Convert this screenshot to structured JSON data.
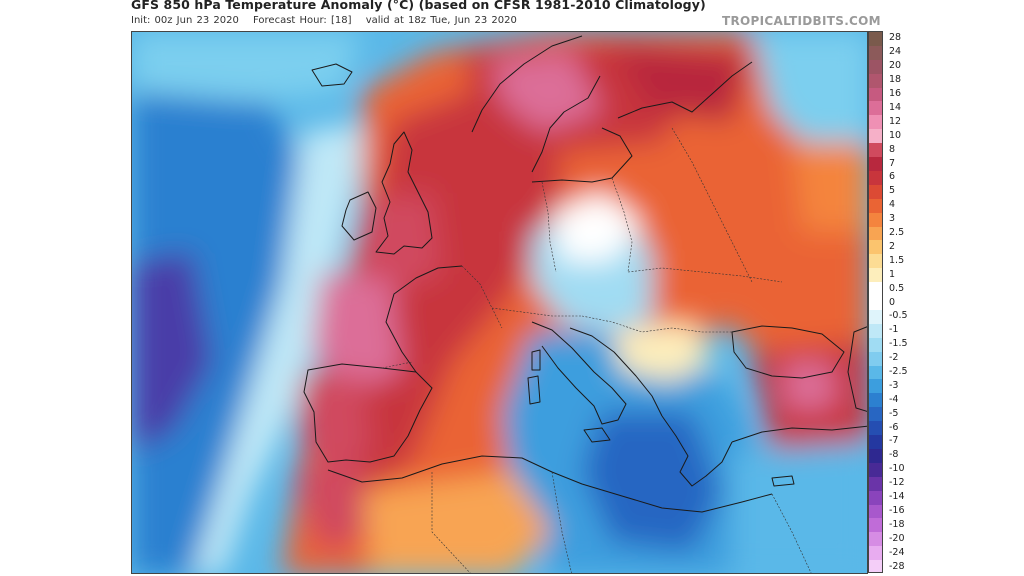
{
  "header": {
    "title": "GFS 850 hPa Temperature Anomaly (°C) (based on CFSR 1981-2010 Climatology)",
    "init": "Init: 00z Jun 23 2020",
    "forecast_hour": "Forecast Hour: [18]",
    "valid": "valid at 18z Tue, Jun 23 2020",
    "credit": "TROPICALTIDBITS.COM"
  },
  "colorbar": {
    "labels": [
      "28",
      "24",
      "20",
      "18",
      "16",
      "14",
      "12",
      "10",
      "8",
      "7",
      "6",
      "5",
      "4",
      "3",
      "2.5",
      "2",
      "1.5",
      "1",
      "0.5",
      "0",
      "-0.5",
      "-1",
      "-1.5",
      "-2",
      "-2.5",
      "-3",
      "-4",
      "-5",
      "-6",
      "-7",
      "-8",
      "-10",
      "-12",
      "-14",
      "-16",
      "-18",
      "-20",
      "-24",
      "-28"
    ],
    "colors": [
      "#7a5a4c",
      "#8c5a5a",
      "#9c5464",
      "#b0566e",
      "#c65a80",
      "#dc6e98",
      "#ef90b4",
      "#f6b0c8",
      "#d04a5e",
      "#b8283e",
      "#c8353c",
      "#dc4a34",
      "#ea6434",
      "#f4843e",
      "#f8a452",
      "#fbc46e",
      "#fcdc94",
      "#fdeebc",
      "#ffffff",
      "#ffffff",
      "#dff4fb",
      "#bfe8f7",
      "#a0dcf3",
      "#80ccef",
      "#5ab8e8",
      "#3c9ede",
      "#2c80d0",
      "#2866c2",
      "#254eb2",
      "#2438a0",
      "#2e2890",
      "#482a96",
      "#6a34a8",
      "#8a44bc",
      "#a858cc",
      "#c06cd8",
      "#d68ce4",
      "#e8acf0",
      "#f4cef8"
    ]
  },
  "map": {
    "colors": {
      "ocean_cold": "#5ab8e8",
      "ocean_deep": "#2c80d0",
      "ocean_coldest": "#4a3ea8",
      "warm": "#ea6434",
      "hot": "#c8353c",
      "very_hot": "#dc6e98",
      "cool_med": "#3c9ede"
    }
  }
}
